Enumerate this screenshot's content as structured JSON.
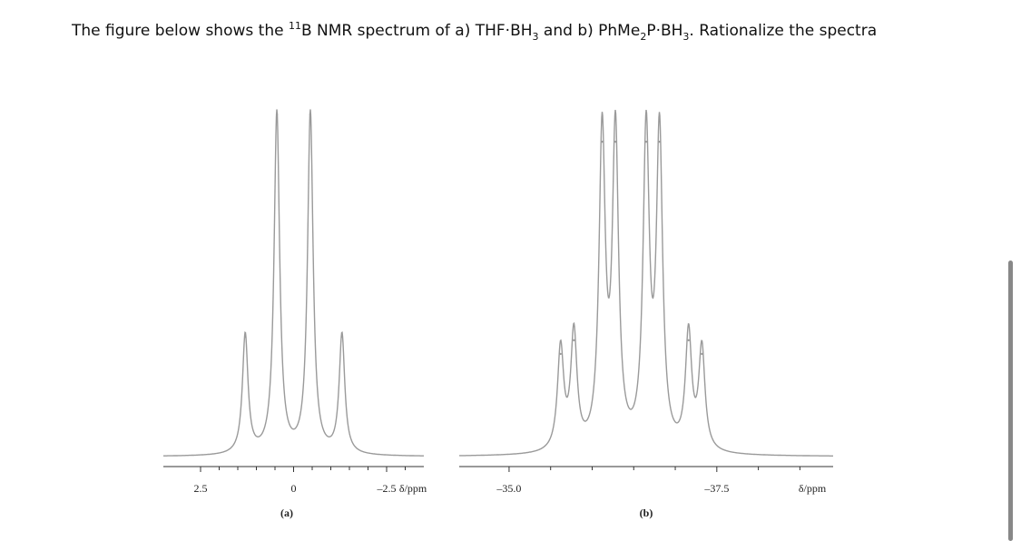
{
  "question": {
    "p1": "The figure below shows the ",
    "boron_mass": "11",
    "p2": "B NMR spectrum of a) THF·BH",
    "sub1": "3",
    "p3": " and b) PhMe",
    "sub2": "2",
    "p4": "P·BH",
    "sub3": "3",
    "p5": ". Rationalize the spectra"
  },
  "chart_data": [
    {
      "type": "line",
      "panel_label": "(a)",
      "xlabel": "δ/ppm",
      "x_range": [
        3.5,
        -3.5
      ],
      "x_reversed": true,
      "ticks": [
        2.5,
        2,
        1.5,
        1,
        0.5,
        0,
        -0.5,
        -1,
        -1.5,
        -2,
        -2.5,
        -3
      ],
      "tick_labels": [
        {
          "value": 2.5,
          "label": "2.5"
        },
        {
          "value": 0,
          "label": "0"
        },
        {
          "value": -2.5,
          "label": "–2.5"
        }
      ],
      "peaks": [
        {
          "shift": 1.3,
          "intensity": 0.35
        },
        {
          "shift": 0.45,
          "intensity": 1.0
        },
        {
          "shift": -0.45,
          "intensity": 1.0
        },
        {
          "shift": -1.3,
          "intensity": 0.35
        }
      ],
      "series_style": {
        "color": "#9a9a9a"
      }
    },
    {
      "type": "line",
      "panel_label": "(b)",
      "xlabel": "δ/ppm",
      "x_range": [
        -34.4,
        -38.9
      ],
      "x_reversed": true,
      "ticks": [
        -35.0,
        -35.5,
        -36.0,
        -36.5,
        -37.0,
        -37.5,
        -38.0,
        -38.5
      ],
      "tick_labels": [
        {
          "value": -35.0,
          "label": "–35.0"
        },
        {
          "value": -37.5,
          "label": "–37.5"
        }
      ],
      "peaks": [
        {
          "shift": -35.62,
          "intensity": 0.3
        },
        {
          "shift": -35.78,
          "intensity": 0.34
        },
        {
          "shift": -36.12,
          "intensity": 0.92
        },
        {
          "shift": -36.28,
          "intensity": 0.92
        },
        {
          "shift": -36.65,
          "intensity": 0.92
        },
        {
          "shift": -36.81,
          "intensity": 0.92
        },
        {
          "shift": -37.16,
          "intensity": 0.34
        },
        {
          "shift": -37.32,
          "intensity": 0.3
        }
      ],
      "series_style": {
        "color": "#9a9a9a"
      }
    }
  ]
}
